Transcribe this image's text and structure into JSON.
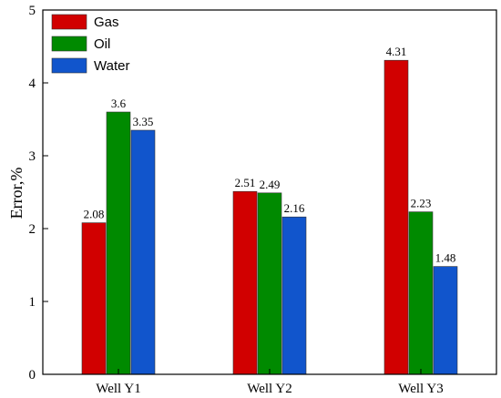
{
  "chart_data": {
    "type": "bar",
    "title": "",
    "xlabel": "",
    "ylabel": "Error,%",
    "ylim": [
      0,
      5
    ],
    "yticks": [
      0,
      1,
      2,
      3,
      4,
      5
    ],
    "grid": false,
    "legend_position": "top-left",
    "categories": [
      "Well Y1",
      "Well Y2",
      "Well Y3"
    ],
    "series": [
      {
        "name": "Gas",
        "color": "#d10000",
        "values": [
          2.08,
          2.51,
          4.31
        ],
        "labels": [
          "2.08",
          "2.51",
          "4.31"
        ]
      },
      {
        "name": "Oil",
        "color": "#008a00",
        "values": [
          3.6,
          2.49,
          2.23
        ],
        "labels": [
          "3.6",
          "2.49",
          "2.23"
        ]
      },
      {
        "name": "Water",
        "color": "#1155cc",
        "values": [
          3.35,
          2.16,
          1.48
        ],
        "labels": [
          "3.35",
          "2.16",
          "1.48"
        ]
      }
    ]
  }
}
